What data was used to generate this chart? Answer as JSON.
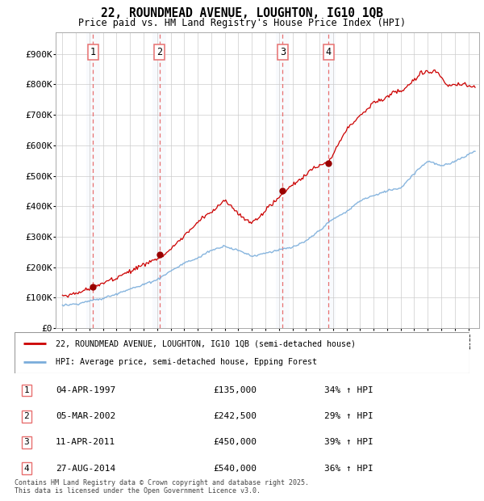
{
  "title": "22, ROUNDMEAD AVENUE, LOUGHTON, IG10 1QB",
  "subtitle": "Price paid vs. HM Land Registry's House Price Index (HPI)",
  "footer": "Contains HM Land Registry data © Crown copyright and database right 2025.\nThis data is licensed under the Open Government Licence v3.0.",
  "legend_line1": "22, ROUNDMEAD AVENUE, LOUGHTON, IG10 1QB (semi-detached house)",
  "legend_line2": "HPI: Average price, semi-detached house, Epping Forest",
  "sales": [
    {
      "num": 1,
      "date": "04-APR-1997",
      "price": 135000,
      "year": 1997.27,
      "hpi_pct": "34% ↑ HPI"
    },
    {
      "num": 2,
      "date": "05-MAR-2002",
      "price": 242500,
      "year": 2002.18,
      "hpi_pct": "29% ↑ HPI"
    },
    {
      "num": 3,
      "date": "11-APR-2011",
      "price": 450000,
      "year": 2011.27,
      "hpi_pct": "39% ↑ HPI"
    },
    {
      "num": 4,
      "date": "27-AUG-2014",
      "price": 540000,
      "year": 2014.66,
      "hpi_pct": "36% ↑ HPI"
    }
  ],
  "xlim": [
    1994.5,
    2025.8
  ],
  "ylim": [
    0,
    970000
  ],
  "yticks": [
    0,
    100000,
    200000,
    300000,
    400000,
    500000,
    600000,
    700000,
    800000,
    900000
  ],
  "ytick_labels": [
    "£0",
    "£100K",
    "£200K",
    "£300K",
    "£400K",
    "£500K",
    "£600K",
    "£700K",
    "£800K",
    "£900K"
  ],
  "property_color": "#cc0000",
  "hpi_color": "#7aaddb",
  "sale_marker_color": "#990000",
  "vline_color": "#e87070",
  "highlight_color": "#dde8f5",
  "bg_color": "#ffffff",
  "grid_color": "#cccccc"
}
